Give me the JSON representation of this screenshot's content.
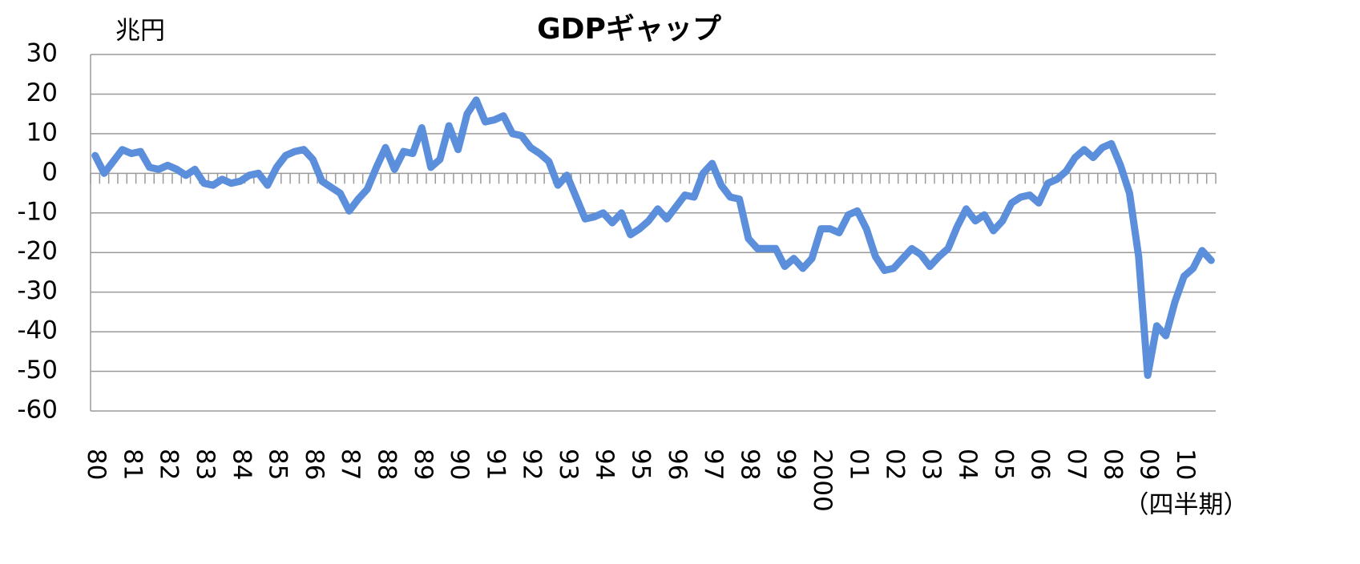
{
  "chart_data": {
    "type": "line",
    "title": "GDPギャップ",
    "y_unit": "兆円",
    "x_unit": "（四半期）",
    "categories": [
      "80",
      null,
      null,
      null,
      "81",
      null,
      null,
      null,
      "82",
      null,
      null,
      null,
      "83",
      null,
      null,
      null,
      "84",
      null,
      null,
      null,
      "85",
      null,
      null,
      null,
      "86",
      null,
      null,
      null,
      "87",
      null,
      null,
      null,
      "88",
      null,
      null,
      null,
      "89",
      null,
      null,
      null,
      "90",
      null,
      null,
      null,
      "91",
      null,
      null,
      null,
      "92",
      null,
      null,
      null,
      "93",
      null,
      null,
      null,
      "94",
      null,
      null,
      null,
      "95",
      null,
      null,
      null,
      "96",
      null,
      null,
      null,
      "97",
      null,
      null,
      null,
      "98",
      null,
      null,
      null,
      "99",
      null,
      null,
      null,
      "2000",
      null,
      null,
      null,
      "01",
      null,
      null,
      null,
      "02",
      null,
      null,
      null,
      "03",
      null,
      null,
      null,
      "04",
      null,
      null,
      null,
      "05",
      null,
      null,
      null,
      "06",
      null,
      null,
      null,
      "07",
      null,
      null,
      null,
      "08",
      null,
      null,
      null,
      "09",
      null,
      null,
      null,
      "10",
      null,
      null,
      null
    ],
    "values": [
      4.5,
      0,
      3,
      6,
      5,
      5.5,
      1.5,
      1,
      2,
      1,
      -0.5,
      1,
      -2.5,
      -3,
      -1.5,
      -2.5,
      -2,
      -0.5,
      0,
      -3,
      1.5,
      4.5,
      5.5,
      6,
      3.5,
      -2,
      -3.5,
      -5,
      -9.5,
      -6.5,
      -4,
      1.5,
      6.5,
      1,
      5.5,
      5,
      11.5,
      1.5,
      3.5,
      12,
      6,
      15,
      18.5,
      13,
      13.5,
      14.5,
      10,
      9.5,
      6.5,
      5,
      3,
      -3,
      -0.5,
      -6,
      -11.5,
      -11,
      -10,
      -12.5,
      -10,
      -15.5,
      -14,
      -12,
      -9,
      -11.5,
      -8.5,
      -5.5,
      -6,
      0,
      2.5,
      -3,
      -6,
      -6.5,
      -16.5,
      -19,
      -19,
      -19,
      -23.5,
      -21.5,
      -24,
      -21.5,
      -14,
      -14,
      -15,
      -10.5,
      -9.5,
      -14,
      -21,
      -24.5,
      -24,
      -21.5,
      -19,
      -20.5,
      -23.5,
      -21,
      -19,
      -13.5,
      -9,
      -12,
      -10.5,
      -14.5,
      -12,
      -7.5,
      -6,
      -5.5,
      -7.5,
      -2.5,
      -1.5,
      0.5,
      4,
      6,
      4,
      6.5,
      7.5,
      2,
      -5,
      -21,
      -51,
      -38.5,
      -41,
      -32.5,
      -26,
      -24,
      -19.5,
      -22
    ],
    "color": "#5b8edb",
    "ylim": [
      -60,
      30
    ],
    "yticks": [
      30,
      20,
      10,
      0,
      -10,
      -20,
      -30,
      -40,
      -50,
      -60
    ],
    "grid": true
  }
}
